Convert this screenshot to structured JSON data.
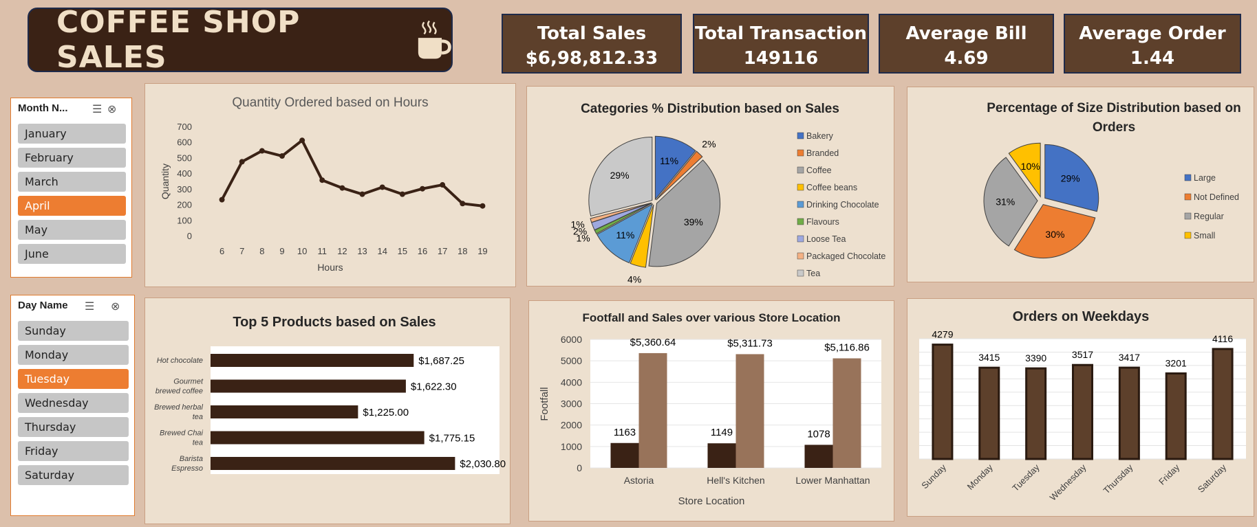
{
  "header": {
    "title": "COFFEE SHOP SALES",
    "icon": "coffee-cup-icon"
  },
  "kpis": [
    {
      "label": "Total Sales",
      "value": "$6,98,812.33"
    },
    {
      "label": "Total Transaction",
      "value": "149116"
    },
    {
      "label": "Average Bill",
      "value": "4.69"
    },
    {
      "label": "Average Order",
      "value": "1.44"
    }
  ],
  "month_slicer": {
    "title": "Month N...",
    "items": [
      "January",
      "February",
      "March",
      "April",
      "May",
      "June"
    ],
    "selected": "April"
  },
  "day_slicer": {
    "title": "Day Name",
    "items": [
      "Sunday",
      "Monday",
      "Tuesday",
      "Wednesday",
      "Thursday",
      "Friday",
      "Saturday"
    ],
    "selected": "Tuesday"
  },
  "colors": {
    "dark_brown": "#3a2215",
    "mid_brown": "#5d402b",
    "light_brown": "#98735a",
    "accent_orange": "#ed7d31"
  },
  "chart_data": [
    {
      "id": "hours",
      "type": "line",
      "title": "Quantity Ordered based on Hours",
      "xlabel": "Hours",
      "ylabel": "Quantity",
      "x": [
        6,
        7,
        8,
        9,
        10,
        11,
        12,
        13,
        14,
        15,
        16,
        17,
        18,
        19
      ],
      "values": [
        235,
        478,
        548,
        515,
        615,
        360,
        310,
        270,
        315,
        270,
        305,
        330,
        210,
        195
      ],
      "ylim": [
        0,
        700
      ],
      "yticks": [
        0,
        100,
        200,
        300,
        400,
        500,
        600,
        700
      ],
      "grid": false
    },
    {
      "id": "categories",
      "type": "pie",
      "title": "Categories  % Distribution based on Sales",
      "labels": [
        "Bakery",
        "Branded",
        "Coffee",
        "Coffee beans",
        "Drinking Chocolate",
        "Flavours",
        "Loose Tea",
        "Packaged Chocolate",
        "Tea"
      ],
      "values": [
        11,
        2,
        39,
        4,
        11,
        1,
        2,
        1,
        29
      ],
      "data_labels": [
        "11%",
        "2%",
        "39%",
        "4%",
        "11%",
        "1%",
        "2%",
        "1%",
        "29%"
      ],
      "colors": [
        "#4472c4",
        "#ed7d31",
        "#a5a5a5",
        "#ffc000",
        "#5b9bd5",
        "#70ad47",
        "#9ea8df",
        "#f4b183",
        "#c9c9c9"
      ],
      "legend": "right"
    },
    {
      "id": "sizes",
      "type": "pie",
      "title": "Percentage of Size Distribution based on Orders",
      "title_lines": [
        "Percentage of Size Distribution based on",
        "Orders"
      ],
      "labels": [
        "Large",
        "Not Defined",
        "Regular",
        "Small"
      ],
      "values": [
        29,
        30,
        31,
        10
      ],
      "data_labels": [
        "29%",
        "30%",
        "31%",
        "10%"
      ],
      "colors": [
        "#4472c4",
        "#ed7d31",
        "#a5a5a5",
        "#ffc000"
      ],
      "legend": "right"
    },
    {
      "id": "top5",
      "type": "bar",
      "orientation": "horizontal",
      "title": "Top 5 Products based on Sales",
      "categories": [
        [
          "Hot chocolate"
        ],
        [
          "Gourmet",
          "brewed coffee"
        ],
        [
          "Brewed herbal",
          "tea"
        ],
        [
          "Brewed Chai",
          "tea"
        ],
        [
          "Barista",
          "Espresso"
        ]
      ],
      "values": [
        1687.25,
        1622.3,
        1225.0,
        1775.15,
        2030.8
      ],
      "data_labels": [
        "$1,687.25",
        "$1,622.30",
        "$1,225.00",
        "$1,775.15",
        "$2,030.80"
      ],
      "xlim": [
        0,
        2400
      ]
    },
    {
      "id": "footfall",
      "type": "bar",
      "title": "Footfall and Sales  over various Store Location",
      "xlabel": "Store Location",
      "ylabel": "Footfall",
      "categories": [
        "Astoria",
        "Hell's Kitchen",
        "Lower Manhattan"
      ],
      "series": [
        {
          "values": [
            1163,
            1149,
            1078
          ],
          "labels": [
            "1163",
            "1149",
            "1078"
          ],
          "color": "#3a2215"
        },
        {
          "values": [
            5360.64,
            5311.73,
            5116.86
          ],
          "labels": [
            "$5,360.64",
            "$5,311.73",
            "$5,116.86"
          ],
          "color": "#98735a"
        }
      ],
      "ylim": [
        0,
        6000
      ],
      "yticks": [
        0,
        1000,
        2000,
        3000,
        4000,
        5000,
        6000
      ]
    },
    {
      "id": "weekdays",
      "type": "bar",
      "title": "Orders on Weekdays",
      "categories": [
        "Sunday",
        "Monday",
        "Tuesday",
        "Wednesday",
        "Thursday",
        "Friday",
        "Saturday"
      ],
      "values": [
        4279,
        3415,
        3390,
        3517,
        3417,
        3201,
        4116
      ],
      "data_labels": [
        "4279",
        "3415",
        "3390",
        "3517",
        "3417",
        "3201",
        "4116"
      ],
      "ylim": [
        0,
        4500
      ],
      "grid": true
    }
  ]
}
